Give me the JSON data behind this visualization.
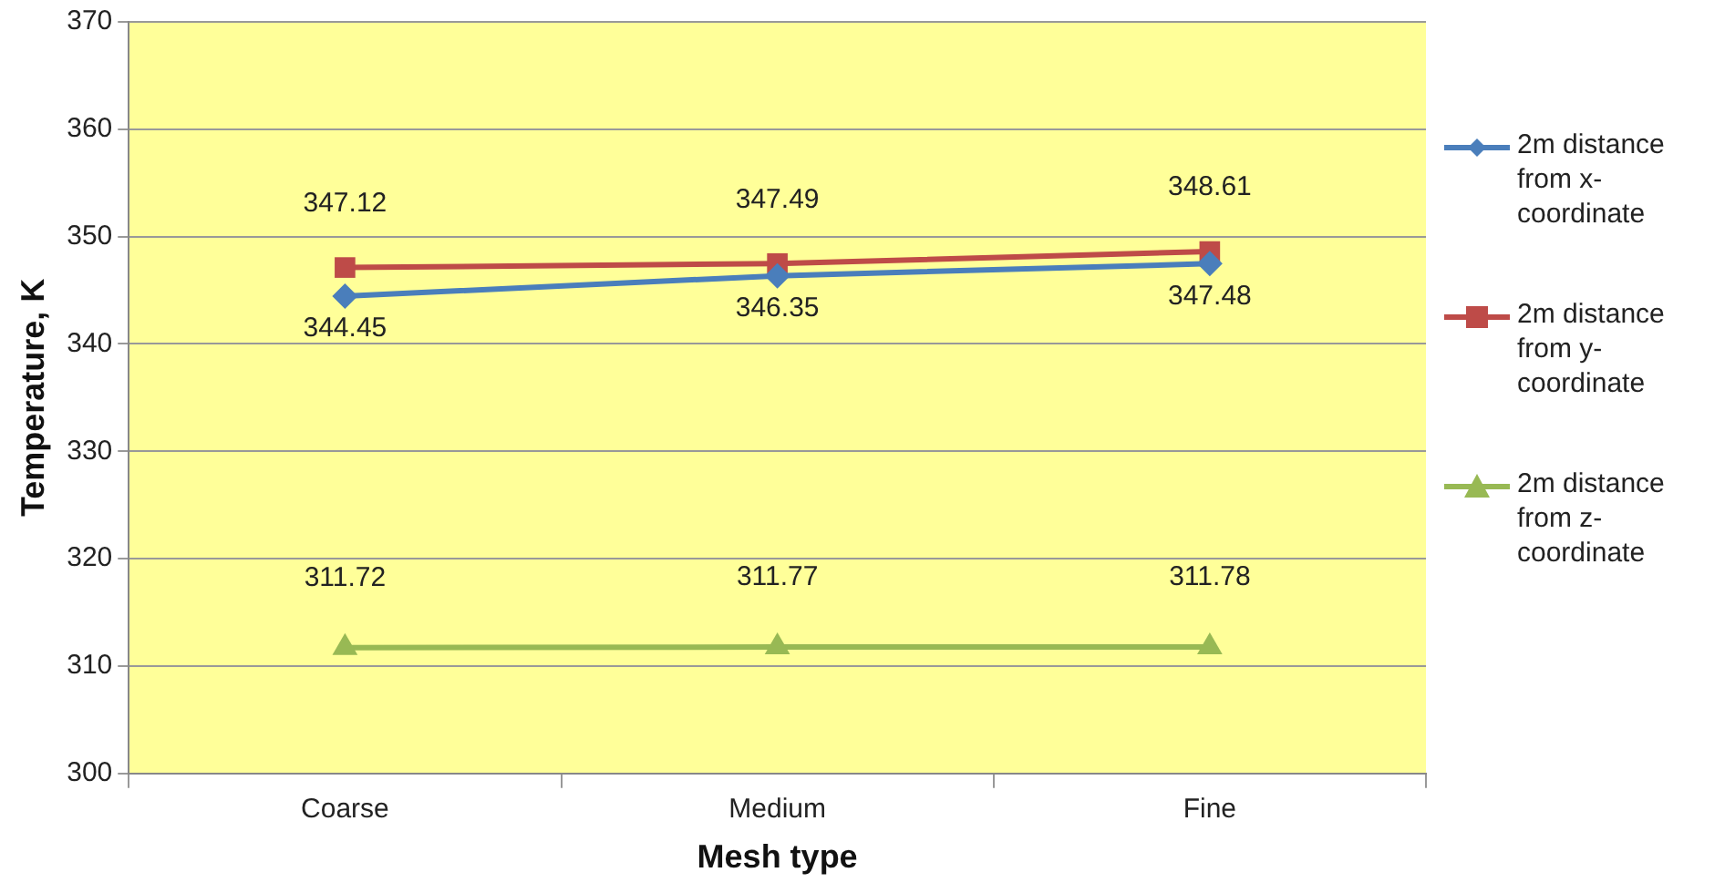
{
  "chart_data": {
    "type": "line",
    "xlabel": "Mesh type",
    "ylabel": "Temperature, K",
    "categories": [
      "Coarse",
      "Medium",
      "Fine"
    ],
    "series": [
      {
        "name": "2m distance from x-coordinate",
        "color": "#4a7ebb",
        "marker": "diamond",
        "values": [
          344.45,
          346.35,
          347.48
        ]
      },
      {
        "name": "2m distance from y-coordinate",
        "color": "#be4b48",
        "marker": "square",
        "values": [
          347.12,
          347.49,
          348.61
        ]
      },
      {
        "name": "2m distance from z-coordinate",
        "color": "#98b954",
        "marker": "triangle",
        "values": [
          311.72,
          311.77,
          311.78
        ]
      }
    ],
    "ylim": [
      300,
      370
    ],
    "yticks": [
      300,
      310,
      320,
      330,
      340,
      350,
      360,
      370
    ],
    "grid": "y",
    "legend": "right",
    "data_labels": true,
    "line_style": "solid"
  }
}
